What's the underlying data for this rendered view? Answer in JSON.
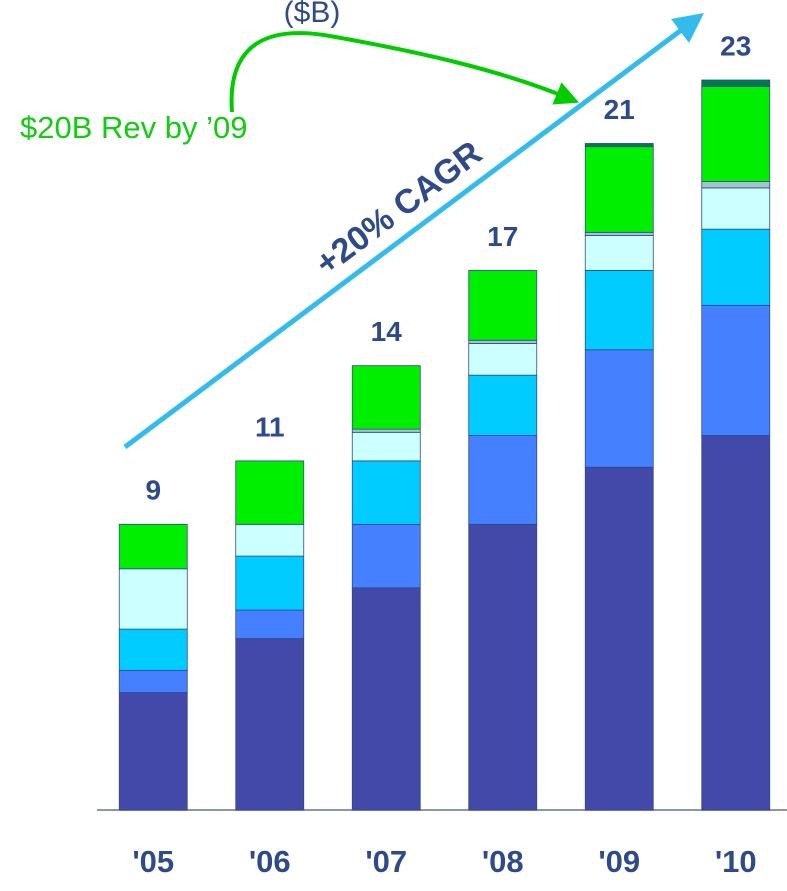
{
  "chart_data": {
    "type": "stacked_bar",
    "subtitle": "($B)",
    "annotations": [
      "$20B Rev by ’09",
      "+20% CAGR"
    ],
    "categories": [
      "'05",
      "'06",
      "'07",
      "'08",
      "'09",
      "'10"
    ],
    "totals": [
      9,
      11,
      14,
      17,
      21,
      23
    ],
    "series": [
      {
        "color": "#4349a8",
        "values": [
          3.7,
          5.4,
          7.0,
          9.0,
          10.8,
          11.8
        ]
      },
      {
        "color": "#4480ff",
        "values": [
          0.7,
          0.9,
          2.0,
          2.8,
          3.7,
          4.1
        ]
      },
      {
        "color": "#00ccff",
        "values": [
          1.3,
          1.7,
          2.0,
          1.9,
          2.5,
          2.4
        ]
      },
      {
        "color": "#ccffff",
        "values": [
          1.9,
          1.0,
          0.9,
          1.0,
          1.1,
          1.3
        ]
      },
      {
        "color": "#a0c4c8",
        "values": [
          0,
          0,
          0.1,
          0.1,
          0.1,
          0.2
        ]
      },
      {
        "color": "#00ee00",
        "values": [
          1.4,
          2.0,
          2.0,
          2.2,
          2.7,
          3.0
        ]
      },
      {
        "color": "#007a50",
        "values": [
          0,
          0,
          0,
          0,
          0.1,
          0.2
        ]
      }
    ]
  }
}
